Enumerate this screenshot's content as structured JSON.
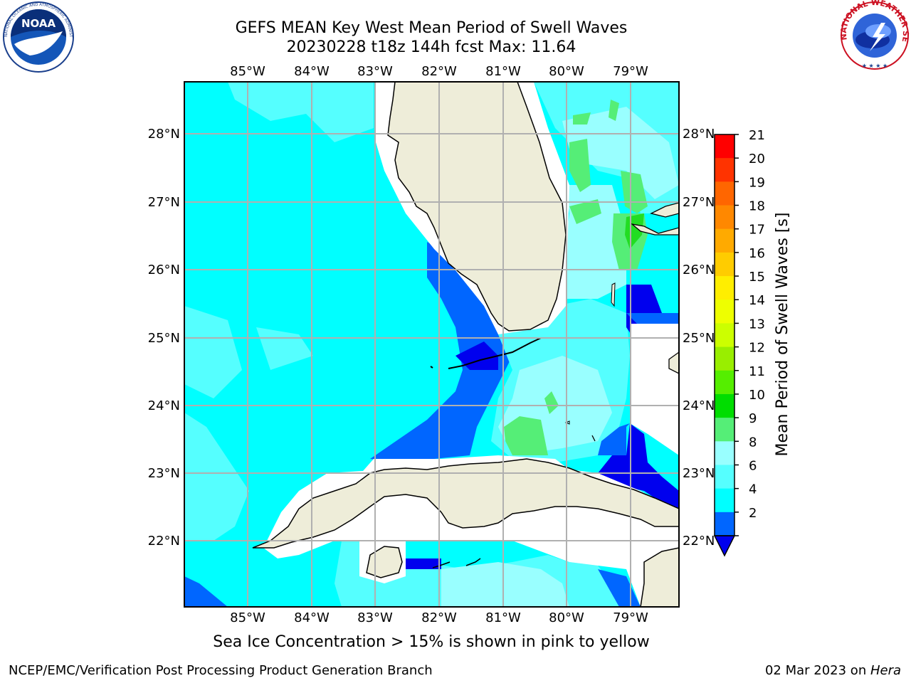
{
  "title": {
    "line1": "GEFS MEAN Key West Mean Period of Swell Waves",
    "line2": "20230228 t18z 144h fcst   Max: 11.64"
  },
  "logos": {
    "left": "NOAA",
    "right": "NATIONAL WEATHER SERVICE",
    "noaa_ring": "NATIONAL OCEANIC AND ATMOSPHERIC ADMINISTRATION · U.S. DEPARTMENT OF COMMERCE"
  },
  "map": {
    "lon_labels": [
      "85°W",
      "84°W",
      "83°W",
      "82°W",
      "81°W",
      "80°W",
      "79°W"
    ],
    "lat_labels": [
      "28°N",
      "27°N",
      "26°N",
      "25°N",
      "24°N",
      "23°N",
      "22°N"
    ],
    "colors": {
      "ocean_main": "#00ffff",
      "ocean_light": "#55ffff",
      "ocean_pale": "#99ffff",
      "deep_blue": "#0066ff",
      "dark_blue": "#0000ee",
      "green_light": "#55ee77",
      "green": "#22dd22",
      "land": "#eeedd9",
      "grid": "#b0b0b0"
    }
  },
  "colorbar": {
    "label": "Mean Period of Swell Waves [s]",
    "ticks": [
      "21",
      "20",
      "19",
      "18",
      "17",
      "16",
      "15",
      "14",
      "13",
      "12",
      "11",
      "10",
      "9",
      "8",
      "6",
      "4",
      "2"
    ],
    "colors": [
      "#ff0000",
      "#ff3300",
      "#ff6600",
      "#ff8800",
      "#ffaa00",
      "#ffcc00",
      "#ffee00",
      "#eeff00",
      "#ccff00",
      "#99ee00",
      "#55ee00",
      "#00dd00",
      "#55ee77",
      "#99ffff",
      "#55ffff",
      "#00ffff",
      "#0066ff"
    ],
    "extend_color": "#0000ee"
  },
  "caption": "Sea Ice Concentration > 15% is shown in pink to yellow",
  "footer": {
    "left": "NCEP/EMC/Verification Post Processing Product Generation Branch",
    "right_date": "02 Mar 2023 on ",
    "right_machine": "Hera"
  }
}
